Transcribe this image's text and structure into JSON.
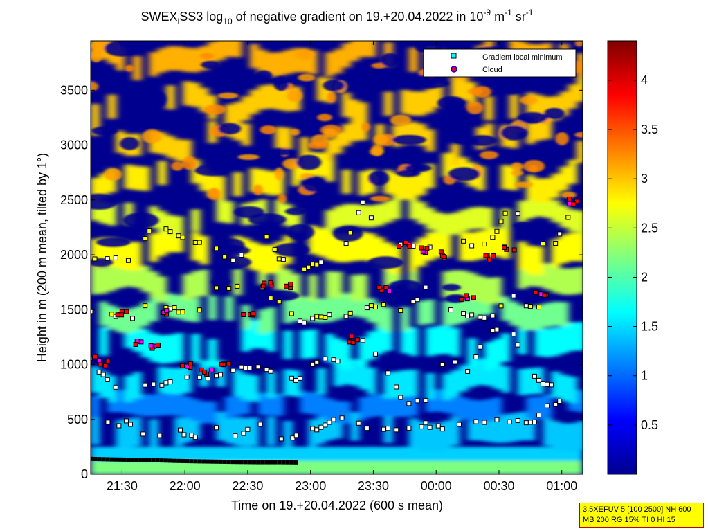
{
  "chart_data": {
    "type": "heatmap",
    "title": "SWEX",
    "title_sub": "l",
    "title_mid": "SS3 log",
    "title_sub2": "10",
    "title_rest": " of negative gradient on 19.+20.04.2022 in 10",
    "title_sup1": "-9",
    "title_unit1": " m",
    "title_sup2": "-1",
    "title_unit2": " sr",
    "title_sup3": "-1",
    "xlabel": "Time on 19.+20.04.2022 (600 s mean)",
    "ylabel": "Height in m (200 m mean, tilted by 1°)",
    "xlim": [
      "21:15",
      "01:10"
    ],
    "ylim": [
      0,
      3950
    ],
    "x_ticks": [
      "21:30",
      "22:00",
      "22:30",
      "23:00",
      "23:30",
      "00:00",
      "00:30",
      "01:00"
    ],
    "y_ticks": [
      0,
      500,
      1000,
      1500,
      2000,
      2500,
      3000,
      3500
    ],
    "colorbar": {
      "min": 0,
      "max": 4.4,
      "ticks": [
        "0.5",
        "1",
        "1.5",
        "2",
        "2.5",
        "3",
        "3.5",
        "4"
      ]
    },
    "legend": {
      "placement": "top-right",
      "entries": [
        {
          "label": "Gradient local minimum",
          "color": "#00ffff"
        },
        {
          "label": "Cloud",
          "color": "#ff0000"
        }
      ]
    },
    "series": [
      {
        "name": "Gradient local minimum",
        "layers": [
          {
            "x": [
              "21:15",
              "21:25",
              "21:35",
              "21:45",
              "21:55",
              "22:05",
              "22:15",
              "22:25",
              "22:35",
              "22:45",
              "22:55"
            ],
            "y": [
              140,
              135,
              132,
              128,
              122,
              118,
              115,
              112,
              110,
              110,
              108
            ]
          },
          {
            "x": [
              "21:18",
              "21:25",
              "21:32",
              "21:40",
              "21:48",
              "21:56",
              "22:05",
              "22:15",
              "22:22",
              "22:30",
              "22:38"
            ],
            "y": [
              590,
              440,
              470,
              360,
              370,
              410,
              330,
              420,
              360,
              400,
              480
            ]
          },
          {
            "x": [
              "22:40",
              "22:48",
              "22:55",
              "23:05",
              "23:15",
              "23:25",
              "23:35",
              "23:45",
              "23:55",
              "00:05",
              "00:15",
              "00:25",
              "00:35",
              "00:45",
              "00:55",
              "01:05"
            ],
            "y": [
              330,
              300,
              380,
              430,
              520,
              440,
              420,
              410,
              450,
              410,
              460,
              500,
              480,
              460,
              640,
              660
            ]
          },
          {
            "x": [
              "21:15",
              "21:25",
              "21:35",
              "21:45",
              "21:55",
              "22:05",
              "22:15",
              "22:25",
              "22:35",
              "22:45",
              "22:55",
              "23:05",
              "23:15",
              "23:25",
              "23:35",
              "23:45",
              "23:55",
              "00:05",
              "00:15",
              "00:25",
              "00:35",
              "00:45",
              "00:55",
              "01:05"
            ],
            "y": [
              1040,
              810,
              800,
              820,
              830,
              900,
              880,
              960,
              990,
              880,
              870,
              1060,
              1030,
              1200,
              1000,
              650,
              680,
              1100,
              920,
              1300,
              1350,
              900,
              800,
              660
            ]
          },
          {
            "x": [
              "21:15",
              "21:25",
              "21:35",
              "21:45",
              "21:55",
              "22:05",
              "22:15",
              "22:25",
              "22:35",
              "22:45",
              "22:55",
              "23:05",
              "23:15",
              "23:25",
              "23:35",
              "23:45",
              "23:55",
              "00:05",
              "00:15",
              "00:25",
              "00:35",
              "00:45",
              "00:55",
              "01:05"
            ],
            "y": [
              1480,
              1450,
              1420,
              1590,
              1500,
              1450,
              1690,
              1710,
              1720,
              1560,
              1380,
              1450,
              1430,
              1520,
              1540,
              1480,
              1700,
              1500,
              1450,
              1400,
              1650,
              1520,
              1550,
              1660
            ]
          },
          {
            "x": [
              "21:15",
              "21:25",
              "21:35",
              "21:45",
              "21:55",
              "22:05",
              "22:15",
              "22:25",
              "22:35",
              "22:45",
              "22:55",
              "23:05",
              "23:15",
              "23:25",
              "23:35",
              "23:45",
              "23:55",
              "00:05",
              "00:15",
              "00:25",
              "00:35",
              "00:45",
              "00:55",
              "01:05"
            ],
            "y": [
              1970,
              1960,
              1940,
              2310,
              2180,
              2110,
              2050,
              1900,
              2300,
              1970,
              1870,
              1920,
              1990,
              2490,
              2130,
              2080,
              2050,
              2240,
              2080,
              2080,
              2450,
              2230,
              2040,
              2430
            ]
          }
        ]
      },
      {
        "name": "Cloud",
        "layers": [
          {
            "x": [
              "21:15",
              "21:22",
              "21:30",
              "21:38",
              "21:45",
              "21:52",
              "22:00",
              "22:10",
              "22:20",
              "22:30",
              "22:40",
              "22:50"
            ],
            "y": [
              1050,
              1010,
              1460,
              1190,
              1160,
              1480,
              1000,
              940,
              990,
              1450,
              1720,
              1710
            ]
          },
          {
            "x": [
              "23:20",
              "23:35",
              "23:45",
              "23:55",
              "00:05",
              "00:15",
              "00:25",
              "00:35",
              "00:50",
              "01:05"
            ],
            "y": [
              1230,
              1680,
              2100,
              2040,
              2000,
              1620,
              1980,
              2050,
              1640,
              2490
            ]
          }
        ]
      }
    ]
  },
  "info_box": {
    "line1": "3.5XEFUV 5 [100 2500] NH 600",
    "line2": "MB 200 RG 15% TI 0 HI 15"
  }
}
